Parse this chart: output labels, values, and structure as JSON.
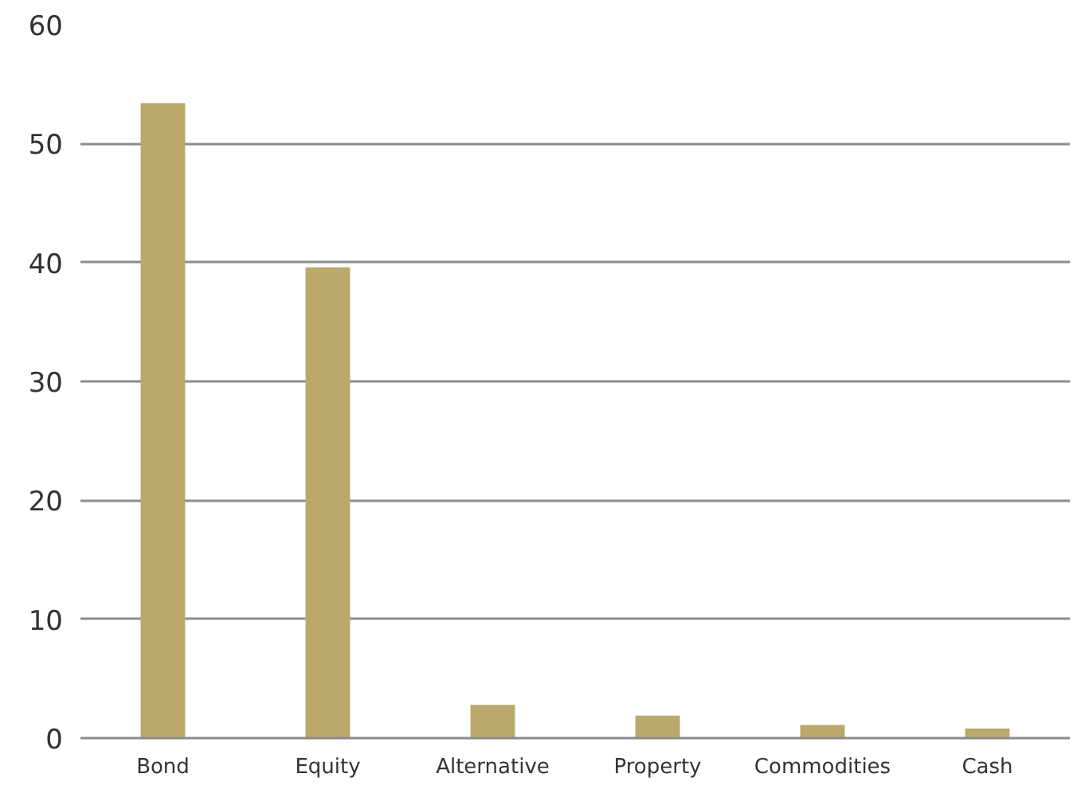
{
  "chart_data": {
    "type": "bar",
    "categories": [
      "Bond",
      "Equity",
      "Alternative",
      "Property",
      "Commodities",
      "Cash"
    ],
    "series": [
      {
        "color": "#bba86b",
        "values": [
          53.4,
          39.6,
          2.8,
          1.9,
          1.1,
          0.8
        ]
      }
    ],
    "ylim": [
      0,
      60
    ],
    "yticks": [
      0,
      10,
      20,
      30,
      40,
      50,
      60
    ],
    "grid": "y"
  }
}
